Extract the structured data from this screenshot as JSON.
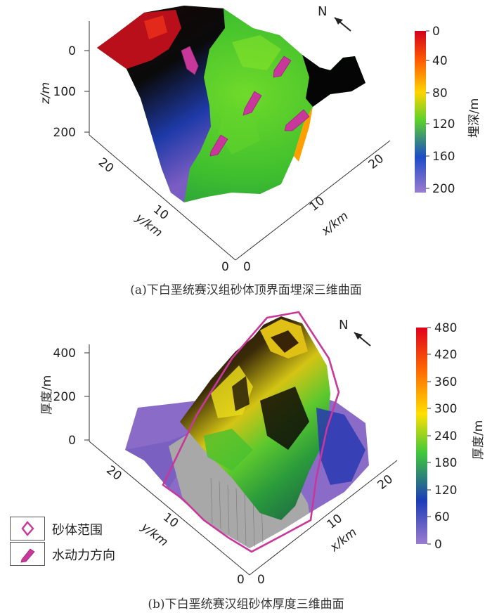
{
  "panel_a": {
    "caption": "(a)下白垩统赛汉组砂体顶界面埋深三维曲面",
    "north": "N",
    "z_axis": {
      "label": "z/m",
      "ticks": [
        "0",
        "100",
        "200"
      ]
    },
    "y_axis": {
      "label": "y/km",
      "ticks": [
        "20",
        "10",
        "0"
      ]
    },
    "x_axis": {
      "label": "x/km",
      "ticks": [
        "0",
        "10",
        "20"
      ]
    },
    "colorbar": {
      "label": "埋深/m",
      "ticks": [
        "0",
        "40",
        "80",
        "120",
        "160",
        "200"
      ],
      "colors": [
        "#d2001e",
        "#ff5a00",
        "#ffd400",
        "#5ed22a",
        "#1c4cc8",
        "#9c7ccf"
      ]
    }
  },
  "panel_b": {
    "caption": "(b)下白垩统赛汉组砂体厚度三维曲面",
    "north": "N",
    "z_axis": {
      "label": "厚度/m",
      "ticks": [
        "400",
        "200",
        "0"
      ]
    },
    "y_axis": {
      "label": "y/km",
      "ticks": [
        "20",
        "10",
        "0"
      ]
    },
    "x_axis": {
      "label": "x/km",
      "ticks": [
        "0",
        "10",
        "20"
      ]
    },
    "colorbar": {
      "label": "厚度/m",
      "ticks": [
        "480",
        "420",
        "360",
        "300",
        "240",
        "180",
        "120",
        "60",
        "0"
      ],
      "colors": [
        "#e0001c",
        "#ff6a00",
        "#ffe000",
        "#3ec83a",
        "#1c3cb8",
        "#9c7ccf"
      ]
    }
  },
  "legend": {
    "items": [
      {
        "label": "砂体范围",
        "symbol": "outline"
      },
      {
        "label": "水动力方向",
        "symbol": "arrow"
      }
    ],
    "accent": "#c8389a"
  }
}
